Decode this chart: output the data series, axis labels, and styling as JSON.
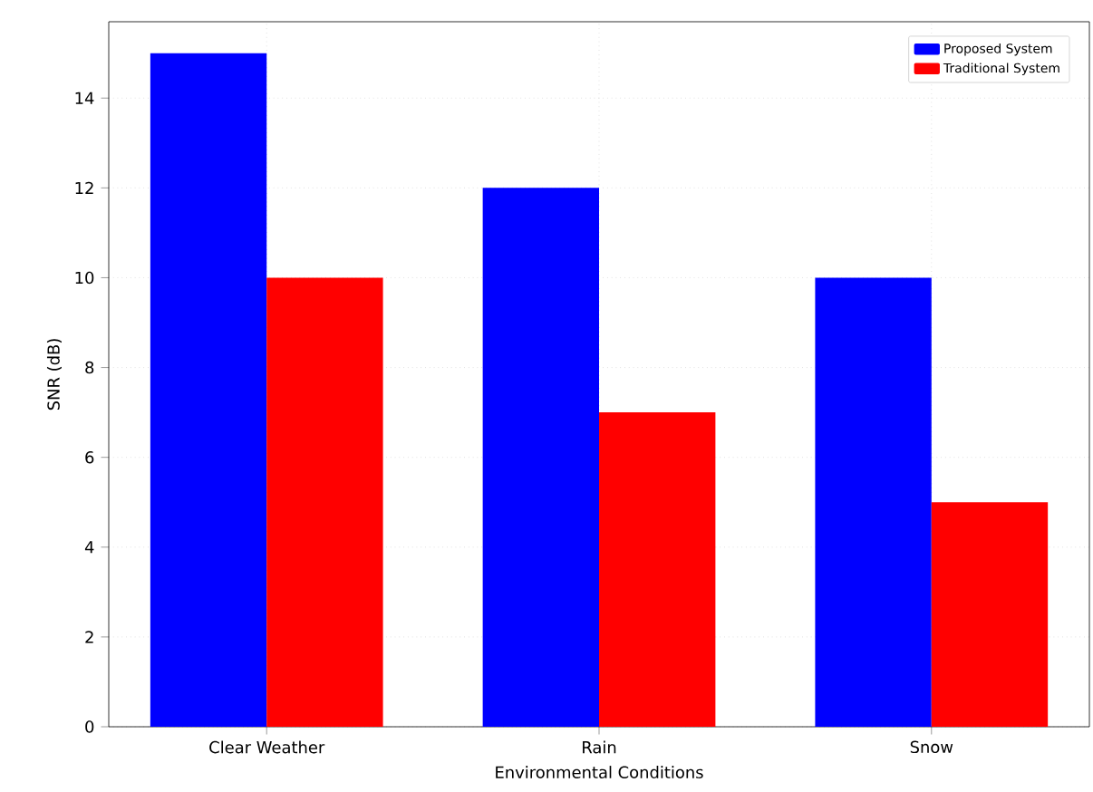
{
  "chart_data": {
    "type": "bar",
    "xlabel": "Environmental Conditions",
    "ylabel": "SNR (dB)",
    "categories": [
      "Clear Weather",
      "Rain",
      "Snow"
    ],
    "series": [
      {
        "name": "Proposed System",
        "color": "#0000ff",
        "values": [
          15,
          12,
          10
        ]
      },
      {
        "name": "Traditional System",
        "color": "#ff0000",
        "values": [
          10,
          7,
          5
        ]
      }
    ],
    "ylim": [
      0,
      15.7
    ],
    "yticks": [
      0,
      2,
      4,
      6,
      8,
      10,
      12,
      14
    ],
    "grid": true,
    "legend": "top right"
  }
}
